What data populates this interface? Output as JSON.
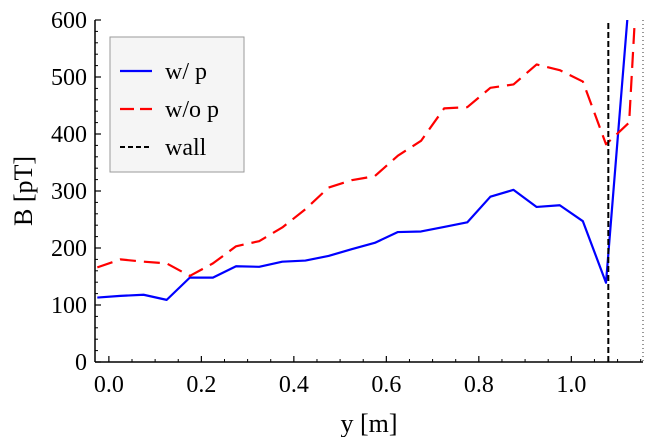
{
  "chart_data": {
    "type": "line",
    "xlabel": "y [m]",
    "ylabel": "B [pT]",
    "xlim": [
      -0.03,
      1.155
    ],
    "ylim": [
      0,
      600
    ],
    "xticks": [
      0.0,
      0.2,
      0.4,
      0.6,
      0.8,
      1.0
    ],
    "xtick_labels": [
      "0.0",
      "0.2",
      "0.4",
      "0.6",
      "0.8",
      "1.0"
    ],
    "yticks": [
      0,
      100,
      200,
      300,
      400,
      500,
      600
    ],
    "ytick_labels": [
      "0",
      "100",
      "200",
      "300",
      "400",
      "500",
      "600"
    ],
    "grid": false,
    "legend_position": "top-left",
    "series": [
      {
        "name": "w/ p",
        "color": "#0000ff",
        "style": "solid",
        "x": [
          -0.025,
          0.025,
          0.075,
          0.125,
          0.175,
          0.225,
          0.275,
          0.325,
          0.375,
          0.425,
          0.475,
          0.525,
          0.575,
          0.625,
          0.675,
          0.725,
          0.775,
          0.825,
          0.875,
          0.925,
          0.975,
          1.025,
          1.075,
          1.125
        ],
        "y": [
          113,
          116,
          118,
          109,
          148,
          148,
          168,
          167,
          176,
          178,
          186,
          198,
          209,
          228,
          229,
          237,
          245,
          290,
          302,
          272,
          275,
          247,
          139,
          640
        ]
      },
      {
        "name": "w/o p",
        "color": "#ff0000",
        "style": "dashed",
        "x": [
          -0.025,
          0.025,
          0.075,
          0.125,
          0.175,
          0.225,
          0.275,
          0.325,
          0.375,
          0.425,
          0.475,
          0.525,
          0.575,
          0.625,
          0.675,
          0.725,
          0.775,
          0.825,
          0.875,
          0.925,
          0.975,
          1.025,
          1.075,
          1.125,
          1.14
        ],
        "y": [
          166,
          180,
          176,
          173,
          151,
          173,
          203,
          212,
          236,
          268,
          306,
          319,
          326,
          362,
          388,
          445,
          447,
          481,
          487,
          522,
          512,
          492,
          382,
          420,
          640
        ]
      },
      {
        "name": "wall",
        "color": "#000000",
        "style": "dashed",
        "x": [
          1.08,
          1.08
        ],
        "y": [
          0,
          600
        ]
      }
    ]
  }
}
